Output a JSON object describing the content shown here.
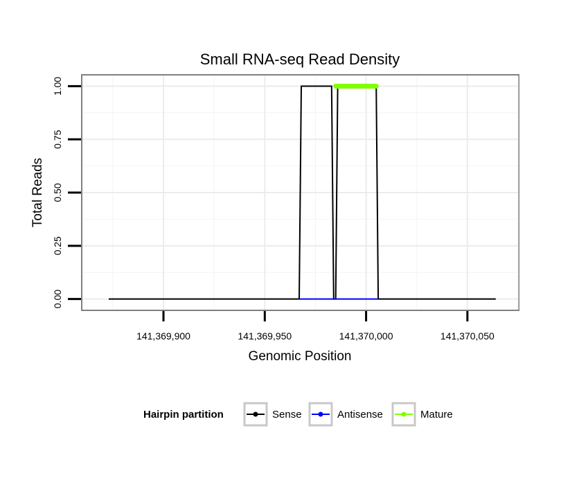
{
  "chart_data": {
    "type": "line",
    "title": "Small RNA-seq Read Density",
    "xlabel": "Genomic Position",
    "ylabel": "Total Reads",
    "xlim": [
      141369860,
      141370075
    ],
    "ylim": [
      -0.05,
      1.05
    ],
    "x_ticks": [
      141369900,
      141369950,
      141370000,
      141370050
    ],
    "x_tick_labels": [
      "141,369,900",
      "141,369,950",
      "141,370,000",
      "141,370,050"
    ],
    "y_ticks": [
      0,
      0.25,
      0.5,
      0.75,
      1
    ],
    "y_tick_labels": [
      "0.00",
      "0.25",
      "0.50",
      "0.75",
      "1.00"
    ],
    "grid": true,
    "legend": {
      "title": "Hairpin partition",
      "position": "bottom"
    },
    "series": [
      {
        "name": "Sense",
        "color": "#000000",
        "x": [
          141369873,
          141369967,
          141369968,
          141369983,
          141369984,
          141369985,
          141369986,
          141370005,
          141370006,
          141370064
        ],
        "y": [
          0,
          0,
          1,
          1,
          0,
          0,
          1,
          1,
          0,
          0
        ]
      },
      {
        "name": "Antisense",
        "color": "#0000ff",
        "x": [
          141369967,
          141370006
        ],
        "y": [
          0,
          0
        ]
      },
      {
        "name": "Mature",
        "color": "#7fff00",
        "x": [
          141369985,
          141370005
        ],
        "y": [
          1,
          1
        ]
      }
    ]
  }
}
